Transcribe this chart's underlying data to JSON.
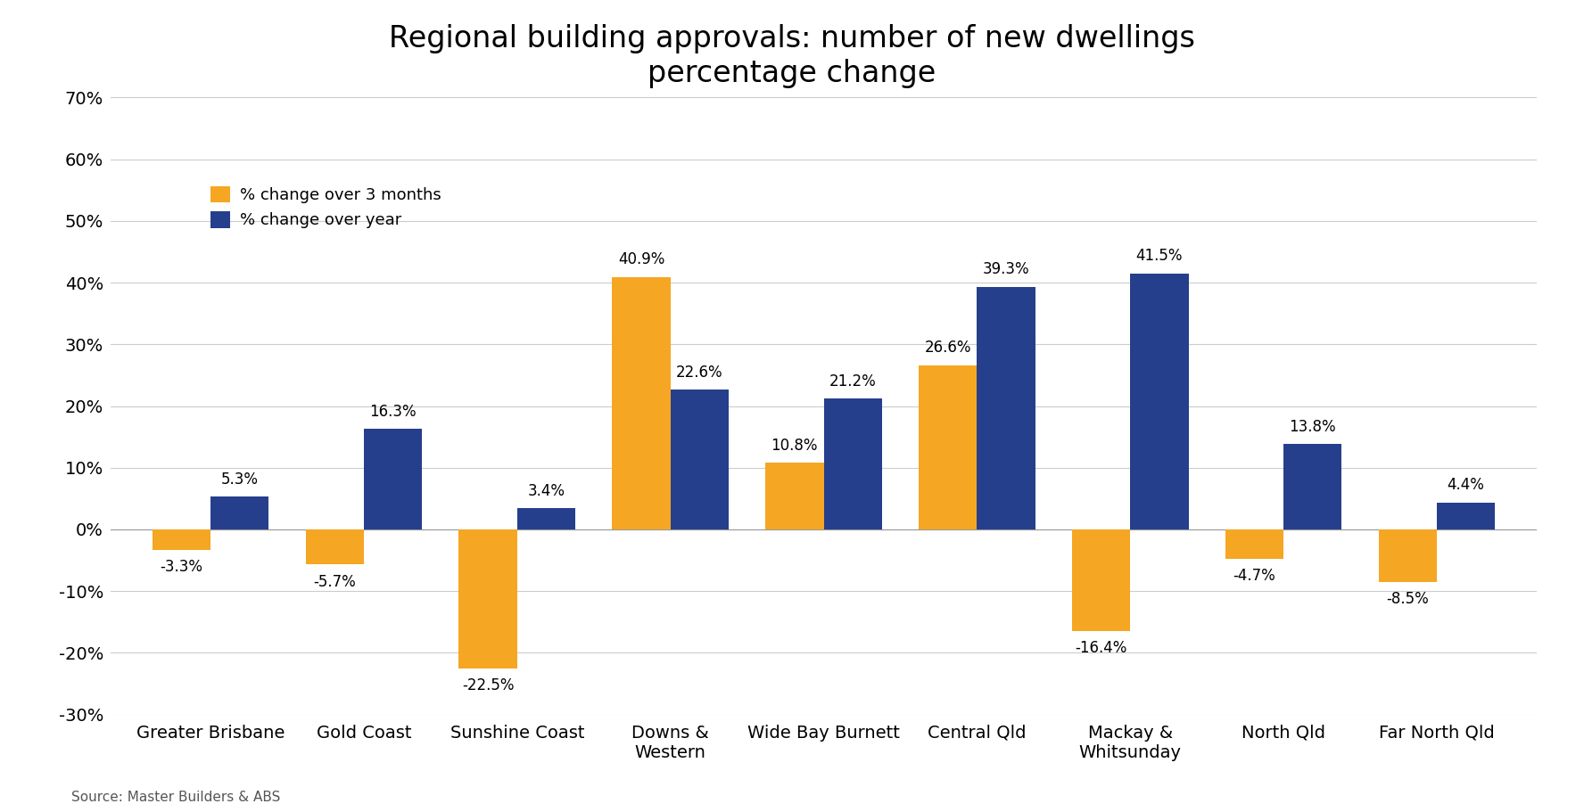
{
  "title": "Regional building approvals: number of new dwellings\npercentage change",
  "categories": [
    "Greater Brisbane",
    "Gold Coast",
    "Sunshine Coast",
    "Downs &\nWestern",
    "Wide Bay Burnett",
    "Central Qld",
    "Mackay &\nWhitsunday",
    "North Qld",
    "Far North Qld"
  ],
  "three_month": [
    -3.3,
    -5.7,
    -22.5,
    40.9,
    10.8,
    26.6,
    -16.4,
    -4.7,
    -8.5
  ],
  "over_year": [
    5.3,
    16.3,
    3.4,
    22.6,
    21.2,
    39.3,
    41.5,
    13.8,
    4.4
  ],
  "color_3month": "#F5A623",
  "color_year": "#263F8C",
  "ylim": [
    -30,
    70
  ],
  "yticks": [
    -30,
    -20,
    -10,
    0,
    10,
    20,
    30,
    40,
    50,
    60,
    70
  ],
  "legend_3month": "% change over 3 months",
  "legend_year": "% change over year",
  "source": "Source: Master Builders & ABS",
  "bar_width": 0.38,
  "title_fontsize": 24,
  "label_fontsize": 13,
  "tick_fontsize": 14,
  "source_fontsize": 11,
  "annotation_fontsize": 12
}
